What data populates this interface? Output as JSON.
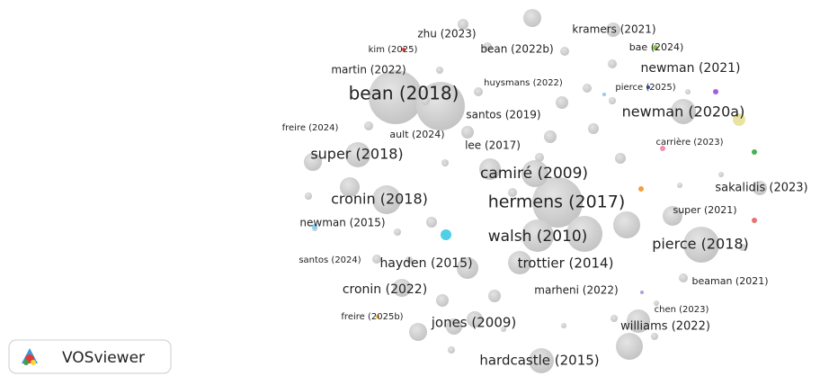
{
  "nodes": [
    {
      "label": "zhu (2023)"
    },
    {
      "label": "kramers (2021)"
    },
    {
      "label": "kim (2025)"
    },
    {
      "label": "bean (2022b)"
    },
    {
      "label": "bae (2024)"
    },
    {
      "label": "martin (2022)"
    },
    {
      "label": "newman (2021)"
    },
    {
      "label": "huysmans (2022)"
    },
    {
      "label": "pierce (2025)"
    },
    {
      "label": "bean (2018)"
    },
    {
      "label": "santos (2019)"
    },
    {
      "label": "newman (2020a)"
    },
    {
      "label": "freire (2024)"
    },
    {
      "label": "ault (2024)"
    },
    {
      "label": "carrière (2023)"
    },
    {
      "label": "lee (2017)"
    },
    {
      "label": "super (2018)"
    },
    {
      "label": "camiré (2009)"
    },
    {
      "label": "sakalidis (2023)"
    },
    {
      "label": "cronin (2018)"
    },
    {
      "label": "hermens (2017)"
    },
    {
      "label": "super (2021)"
    },
    {
      "label": "newman (2015)"
    },
    {
      "label": "walsh (2010)"
    },
    {
      "label": "pierce (2018)"
    },
    {
      "label": "santos (2024)"
    },
    {
      "label": "hayden (2015)"
    },
    {
      "label": "trottier (2014)"
    },
    {
      "label": "beaman (2021)"
    },
    {
      "label": "cronin (2022)"
    },
    {
      "label": "marheni (2022)"
    },
    {
      "label": "chen (2023)"
    },
    {
      "label": "freire (2025b)"
    },
    {
      "label": "jones (2009)"
    },
    {
      "label": "williams (2022)"
    },
    {
      "label": "hardcastle (2015)"
    }
  ],
  "logo": {
    "text": "VOSviewer"
  }
}
